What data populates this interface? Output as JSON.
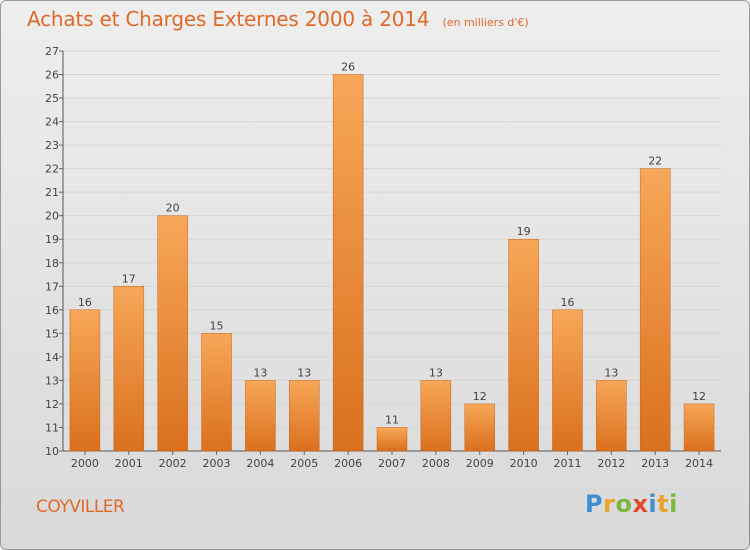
{
  "header": {
    "title": "Achats et Charges Externes 2000 à 2014",
    "subtitle": "(en milliers d'€)"
  },
  "footer": {
    "town": "COYVILLER",
    "logo_letters": [
      "P",
      "r",
      "o",
      "x",
      "i",
      "t",
      "i"
    ],
    "logo_colors": [
      "#3d8fd1",
      "#e8a32a",
      "#7cb83d",
      "#e04a2a",
      "#3d8fd1",
      "#e8a32a",
      "#7cb83d"
    ]
  },
  "colors": {
    "bar_light": "#f7a758",
    "bar_dark": "#d9701e",
    "accent": "#e0692a",
    "grid": "#d5d5d5"
  },
  "chart_data": {
    "type": "bar",
    "title": "Achats et Charges Externes 2000 à 2014",
    "subtitle": "(en milliers d'€)",
    "categories": [
      "2000",
      "2001",
      "2002",
      "2003",
      "2004",
      "2005",
      "2006",
      "2007",
      "2008",
      "2009",
      "2010",
      "2011",
      "2012",
      "2013",
      "2014"
    ],
    "values": [
      16,
      17,
      20,
      15,
      13,
      13,
      26,
      11,
      13,
      12,
      19,
      16,
      13,
      22,
      12
    ],
    "ylim": [
      10,
      27
    ],
    "yticks": [
      10,
      11,
      12,
      13,
      14,
      15,
      16,
      17,
      18,
      19,
      20,
      21,
      22,
      23,
      24,
      25,
      26,
      27
    ],
    "grid": true,
    "data_labels": true
  }
}
